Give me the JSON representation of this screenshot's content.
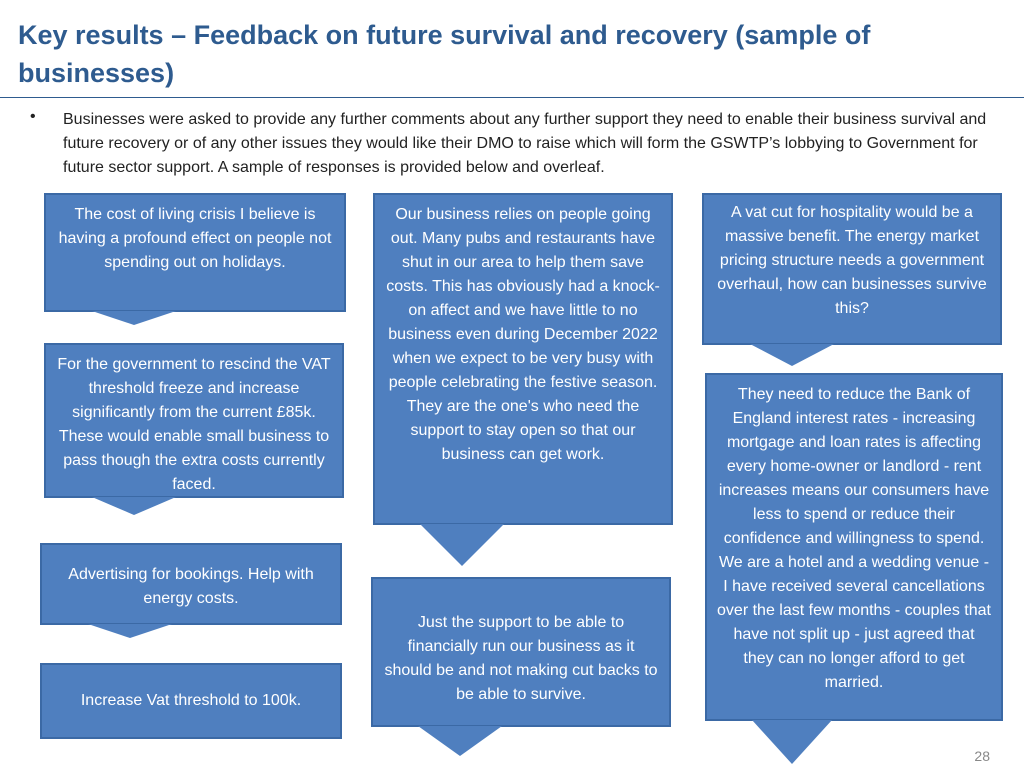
{
  "title": "Key results – Feedback on future survival and recovery (sample of businesses)",
  "intro": "Businesses were asked to provide any further comments about any further support they need to enable their business survival and future recovery or of any other issues they would like their DMO to raise which will form the GSWTP’s lobbying to Government for future sector support.  A sample of responses is provided below and overleaf.",
  "bullet_symbol": "•",
  "callouts": [
    "The cost of living crisis I believe is having a profound effect on people not spending out on holidays.",
    "For the government to rescind the VAT threshold freeze and increase significantly from the current £85k. These would enable small business to pass though the extra costs currently faced.",
    "Advertising for bookings. Help with energy costs.",
    "Increase Vat threshold to 100k.",
    "Our business relies on people going out.  Many pubs and restaurants have shut in our area to help them save costs.  This has obviously had a knock-on affect and we have little to no business even during December 2022 when we expect to be very busy with people celebrating the festive season.  They are the one's who need the support to stay open so that our business can get work.",
    "Just the support to be able to financially run our business as it should be and not making cut backs to be able to survive.",
    "A vat cut for hospitality would be a massive benefit. The energy market pricing structure needs a government overhaul, how can businesses survive this?",
    "They need to reduce the Bank of England interest rates - increasing mortgage and loan rates is affecting every home-owner or landlord - rent increases means our consumers have less to spend or reduce their confidence and willingness to spend. We are a hotel and a wedding venue - I have received several cancellations over the last few months - couples that have not split up - just agreed that they can no longer afford to get married."
  ],
  "page_number": "28"
}
